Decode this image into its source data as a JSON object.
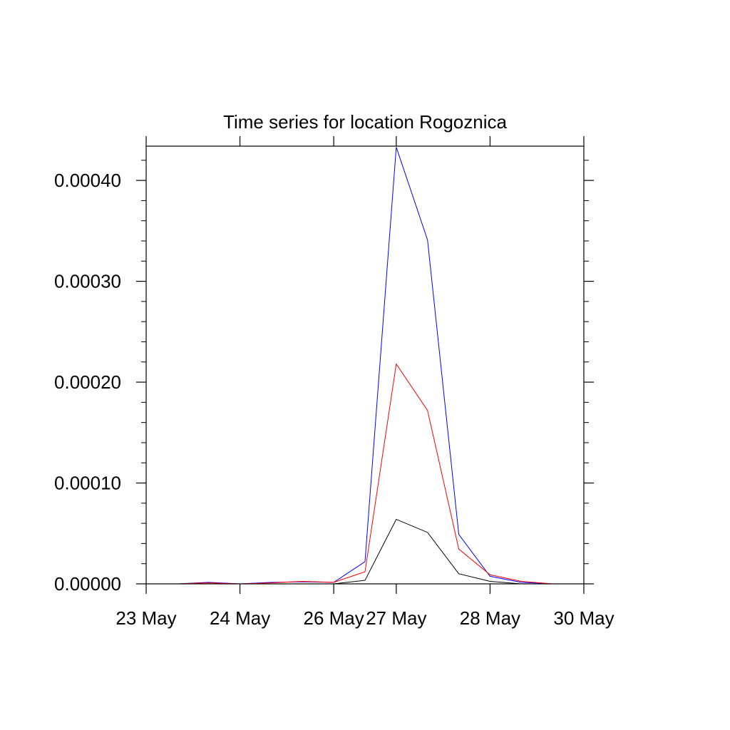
{
  "chart_data": {
    "type": "line",
    "title": "Time series for location Rogoznica",
    "xlabel": "",
    "ylabel": "",
    "ylim": [
      0,
      0.000434
    ],
    "grid": false,
    "legend": "none",
    "x_tick_labels": [
      "23 May",
      "24 May",
      "26 May",
      "27 May",
      "28 May",
      "30 May"
    ],
    "y_tick_labels": [
      "0.00000",
      "0.00010",
      "0.00020",
      "0.00030",
      "0.00040"
    ],
    "x_tick_steps": [
      0,
      3,
      6,
      8,
      11,
      14
    ],
    "y_ticks": [
      0,
      0.0001,
      0.0002,
      0.0003,
      0.0004
    ],
    "y_minor_step": 2e-05,
    "x_steps": [
      0,
      1,
      2,
      3,
      4,
      5,
      6,
      7,
      8,
      9,
      10,
      11,
      12,
      13,
      14
    ],
    "series": [
      {
        "color": "#0000ff",
        "values": [
          0,
          0,
          1.5e-06,
          0,
          1.5e-06,
          2e-06,
          1.5e-06,
          2.2e-05,
          0.000433,
          0.000341,
          4.9e-05,
          7.5e-06,
          1.5e-06,
          0,
          0
        ]
      },
      {
        "color": "#ff0000",
        "values": [
          0,
          0,
          1e-06,
          0,
          1e-06,
          2.5e-06,
          1.5e-06,
          1.2e-05,
          0.000218,
          0.000172,
          3.45e-05,
          9e-06,
          2.5e-06,
          0,
          0
        ]
      },
      {
        "color": "#000000",
        "values": [
          0,
          0,
          0,
          0,
          0,
          0,
          0,
          3.5e-06,
          6.4e-05,
          5.1e-05,
          1e-05,
          2.5e-06,
          0,
          0,
          0
        ]
      }
    ]
  }
}
